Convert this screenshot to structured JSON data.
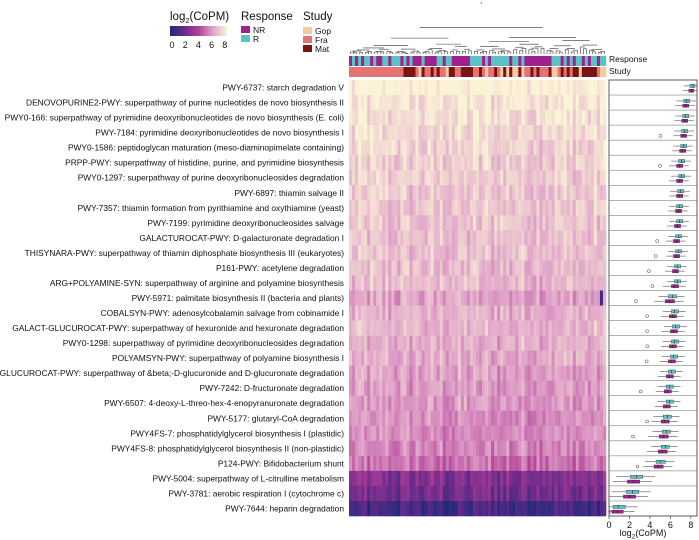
{
  "chart_data": {
    "type": "heatmap",
    "color_legend": {
      "title_main": "log",
      "title_sub": "2",
      "title_rest": "(CoPM)",
      "ticks": [
        "0",
        "2",
        "4",
        "6",
        "8"
      ],
      "range": [
        0,
        8
      ]
    },
    "response_legend": {
      "title": "Response",
      "items": [
        {
          "label": "NR",
          "color": "#a0218e"
        },
        {
          "label": "R",
          "color": "#5bc3c3"
        }
      ]
    },
    "study_legend": {
      "title": "Study",
      "items": [
        {
          "label": "Gop",
          "color": "#f4caa0"
        },
        {
          "label": "Fra",
          "color": "#e57373"
        },
        {
          "label": "Mat",
          "color": "#7a1414"
        }
      ]
    },
    "annotation_labels": {
      "response": "Response",
      "study": "Study"
    },
    "rows": [
      "PWY-6737: starch degradation V",
      "DENOVOPURINE2-PWY: superpathway of purine nucleotides de novo biosynthesis II",
      "PWY0-166: superpathway of pyrimidine deoxyribonucleotides de novo biosynthesis (E. coli)",
      "PWY-7184: pyrimidine deoxyribonucleotides de novo biosynthesis I",
      "PWY0-1586: peptidoglycan maturation (meso-diaminopimelate containing)",
      "PRPP-PWY: superpathway of histidine, purine, and pyrimidine biosynthesis",
      "PWY0-1297: superpathway of purine deoxyribonucleosides degradation",
      "PWY-6897: thiamin salvage II",
      "PWY-7357: thiamin formation from pyrithiamine and oxythiamine (yeast)",
      "PWY-7199: pyrimidine deoxyribonucleosides salvage",
      "GALACTUROCAT-PWY: D-galacturonate degradation I",
      "THISYNARA-PWY: superpathway of thiamin diphosphate biosynthesis III (eukaryotes)",
      "P161-PWY: acetylene degradation",
      "ARG+POLYAMINE-SYN: superpathway of arginine and polyamine biosynthesis",
      "PWY-5971: palmitate biosynthesis II (bacteria and plants)",
      "COBALSYN-PWY: adenosylcobalamin salvage from cobinamide I",
      "GALACT-GLUCUROCAT-PWY: superpathway of hexuronide and hexuronate degradation",
      "PWY0-1298: superpathway of pyrimidine deoxyribonucleosides degradation",
      "POLYAMSYN-PWY: superpathway of polyamine biosynthesis I",
      "GLUCUROCAT-PWY: superpathway of &beta;-D-glucuronide and D-glucuronate degradation",
      "PWY-7242: D-fructuronate degradation",
      "PWY-6507: 4-deoxy-L-threo-hex-4-enopyranuronate degradation",
      "PWY-5177: glutaryl-CoA degradation",
      "PWY4FS-7: phosphatidylglycerol biosynthesis I (plastidic)",
      "PWY4FS-8: phosphatidylglycerol biosynthesis II (non-plastidic)",
      "P124-PWY: Bifidobacterium shunt",
      "PWY-5004: superpathway of L-citrulline metabolism",
      "PWY-3781: aerobic respiration I (cytochrome c)",
      "PWY-7644: heparin degradation"
    ],
    "row_mean_log2_copm": [
      8.1,
      7.6,
      7.5,
      7.4,
      7.2,
      7.0,
      7.0,
      6.9,
      6.9,
      6.8,
      6.7,
      6.7,
      6.6,
      6.6,
      6.0,
      6.3,
      6.4,
      6.3,
      6.2,
      6.0,
      5.8,
      5.8,
      5.6,
      5.5,
      5.4,
      5.0,
      2.6,
      2.2,
      1.0
    ],
    "boxplot": {
      "xlabel_main": "log",
      "xlabel_sub": "2",
      "xlabel_rest": "(CoPM)",
      "ticks": [
        "0",
        "2",
        "4",
        "6",
        "8"
      ],
      "xlim": [
        0,
        8.6
      ],
      "series": [
        {
          "name": "NR",
          "color": "#a0218e",
          "q1": [
            7.8,
            7.2,
            7.1,
            7.0,
            6.9,
            6.6,
            6.6,
            6.6,
            6.5,
            6.4,
            6.3,
            6.3,
            6.2,
            6.1,
            5.5,
            5.9,
            6.0,
            5.9,
            5.8,
            5.6,
            5.4,
            5.3,
            5.1,
            4.9,
            4.8,
            4.4,
            1.8,
            1.4,
            0.3
          ],
          "median": [
            8.1,
            7.5,
            7.4,
            7.3,
            7.2,
            6.9,
            6.9,
            6.9,
            6.8,
            6.7,
            6.6,
            6.6,
            6.5,
            6.4,
            5.9,
            6.2,
            6.3,
            6.2,
            6.1,
            5.9,
            5.7,
            5.6,
            5.4,
            5.3,
            5.2,
            4.8,
            2.4,
            2.0,
            0.8
          ],
          "q3": [
            8.3,
            7.8,
            7.7,
            7.6,
            7.5,
            7.2,
            7.2,
            7.2,
            7.1,
            7.0,
            6.9,
            6.9,
            6.8,
            6.8,
            6.4,
            6.6,
            6.7,
            6.6,
            6.5,
            6.3,
            6.1,
            6.0,
            5.9,
            5.8,
            5.7,
            5.3,
            3.0,
            2.6,
            1.4
          ]
        },
        {
          "name": "R",
          "color": "#5bc3c3",
          "q1": [
            7.9,
            7.3,
            7.2,
            7.1,
            7.0,
            6.8,
            6.8,
            6.7,
            6.6,
            6.6,
            6.5,
            6.5,
            6.4,
            6.4,
            5.8,
            6.1,
            6.2,
            6.1,
            6.0,
            5.8,
            5.6,
            5.6,
            5.3,
            5.2,
            5.1,
            4.6,
            2.1,
            1.7,
            0.4
          ],
          "median": [
            8.2,
            7.6,
            7.5,
            7.4,
            7.3,
            7.1,
            7.1,
            7.0,
            6.9,
            6.9,
            6.8,
            6.8,
            6.7,
            6.7,
            6.2,
            6.4,
            6.5,
            6.4,
            6.3,
            6.1,
            5.9,
            5.9,
            5.7,
            5.6,
            5.5,
            5.0,
            2.7,
            2.3,
            0.9
          ],
          "q3": [
            8.4,
            7.9,
            7.8,
            7.7,
            7.6,
            7.4,
            7.4,
            7.3,
            7.2,
            7.2,
            7.1,
            7.1,
            7.0,
            7.0,
            6.6,
            6.8,
            6.9,
            6.8,
            6.7,
            6.5,
            6.3,
            6.3,
            6.1,
            6.0,
            5.9,
            5.5,
            3.3,
            2.9,
            1.6
          ]
        }
      ]
    }
  }
}
